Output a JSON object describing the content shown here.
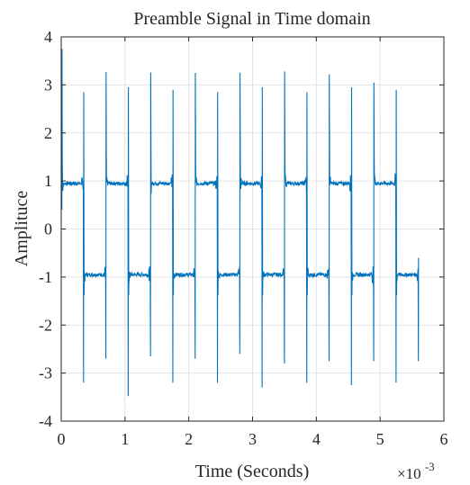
{
  "chart_data": {
    "type": "line",
    "title": "Preamble Signal in Time domain",
    "xlabel": "Time (Seconds)",
    "ylabel": "Amplituce",
    "x_exponent_label": "×10",
    "x_exponent_power": "-3",
    "xlim": [
      0,
      6
    ],
    "ylim": [
      -4,
      4
    ],
    "x_ticks": [
      0,
      1,
      2,
      3,
      4,
      5,
      6
    ],
    "y_ticks": [
      -4,
      -3,
      -2,
      -1,
      0,
      1,
      2,
      3,
      4
    ],
    "x_tick_labels": [
      "0",
      "1",
      "2",
      "3",
      "4",
      "5",
      "6"
    ],
    "y_tick_labels": [
      "-4",
      "-3",
      "-2",
      "-1",
      "0",
      "1",
      "2",
      "3",
      "4"
    ],
    "grid": true,
    "line_color": "#0072BD",
    "signal": {
      "segment_period_units": 0.35,
      "segments_count": 16,
      "first_level": 1,
      "level_magnitude": 0.95,
      "end_time": 5.6,
      "edge_spikes": [
        {
          "t": 0.01,
          "peak": 3.75
        },
        {
          "t": 0.35,
          "peak": 2.85,
          "trough": -3.2
        },
        {
          "t": 0.7,
          "peak": 3.27,
          "trough": -2.7
        },
        {
          "t": 1.05,
          "peak": 2.95,
          "trough": -3.48
        },
        {
          "t": 1.4,
          "peak": 3.26,
          "trough": -2.65
        },
        {
          "t": 1.75,
          "peak": 2.9,
          "trough": -3.2
        },
        {
          "t": 2.1,
          "peak": 3.25,
          "trough": -2.7
        },
        {
          "t": 2.45,
          "peak": 2.85,
          "trough": -3.2
        },
        {
          "t": 2.8,
          "peak": 3.25,
          "trough": -2.6
        },
        {
          "t": 3.15,
          "peak": 2.95,
          "trough": -3.3
        },
        {
          "t": 3.5,
          "peak": 3.28,
          "trough": -2.8
        },
        {
          "t": 3.85,
          "peak": 2.85,
          "trough": -3.2
        },
        {
          "t": 4.2,
          "peak": 3.22,
          "trough": -2.75
        },
        {
          "t": 4.55,
          "peak": 2.95,
          "trough": -3.25
        },
        {
          "t": 4.9,
          "peak": 3.05,
          "trough": -2.75
        },
        {
          "t": 5.25,
          "peak": 2.9,
          "trough": -3.2
        },
        {
          "t": 5.6,
          "peak": -0.6,
          "trough": -2.75
        }
      ]
    }
  }
}
